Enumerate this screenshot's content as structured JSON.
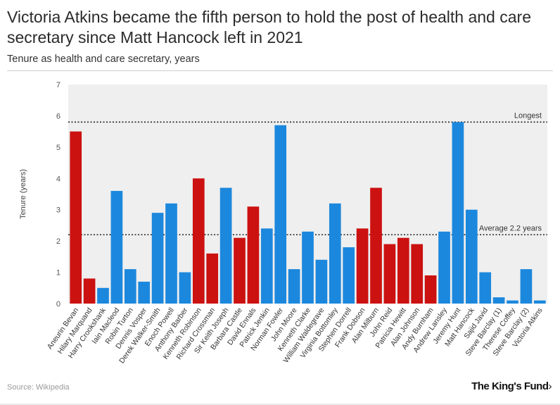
{
  "title": "Victoria Atkins became the fifth person to hold the post of health and care secretary since Matt Hancock left in 2021",
  "subtitle": "Tenure as health and care secretary, years",
  "source": "Source: Wikipedia",
  "logo": "The King's Fund",
  "logo_chevron": "›",
  "colors": {
    "labour": "#cc1111",
    "conservative": "#1c88dd",
    "plot_bg": "#efefef",
    "reference_line": "#222222"
  },
  "chart_data": {
    "type": "bar",
    "ylabel": "Tenure (years)",
    "ylim": [
      0,
      7
    ],
    "yticks": [
      0,
      1,
      2,
      3,
      4,
      5,
      6,
      7
    ],
    "grid": false,
    "categories": [
      "Aneurin Bevan",
      "Hilary Marquand",
      "Harry Crookshank",
      "Iain Macleod",
      "Robin Turton",
      "Dennis Vosper",
      "Derek Walker-Smith",
      "Enoch Powell",
      "Anthony Barber",
      "Kenneth Robinson",
      "Richard Crossman",
      "Sir Keith Joseph",
      "Barbara Castle",
      "David Ennals",
      "Patrick Jenkin",
      "Norman Fowler",
      "John Moore",
      "Kenneth Clarke",
      "William Waldegrave",
      "Virginia Bottomley",
      "Stephen Dorrell",
      "Frank Dobson",
      "Alan Milburn",
      "John Reid",
      "Patricia Hewitt",
      "Alan Johnson",
      "Andy Burnham",
      "Andrew Lansley",
      "Jeremy Hunt",
      "Matt Hancock",
      "Sajid Javid",
      "Steve Barclay (1)",
      "Therese Coffey",
      "Steve Barclay (2)",
      "Victoria Atkins"
    ],
    "values": [
      5.5,
      0.8,
      0.5,
      3.6,
      1.1,
      0.7,
      2.9,
      3.2,
      1.0,
      4.0,
      1.6,
      3.7,
      2.1,
      3.1,
      2.4,
      5.7,
      1.1,
      2.3,
      1.4,
      3.2,
      1.8,
      2.4,
      3.7,
      1.9,
      2.1,
      1.9,
      0.9,
      2.3,
      5.8,
      3.0,
      1.0,
      0.2,
      0.1,
      1.1,
      0.1
    ],
    "party": [
      "labour",
      "labour",
      "conservative",
      "conservative",
      "conservative",
      "conservative",
      "conservative",
      "conservative",
      "conservative",
      "labour",
      "labour",
      "conservative",
      "labour",
      "labour",
      "conservative",
      "conservative",
      "conservative",
      "conservative",
      "conservative",
      "conservative",
      "conservative",
      "labour",
      "labour",
      "labour",
      "labour",
      "labour",
      "labour",
      "conservative",
      "conservative",
      "conservative",
      "conservative",
      "conservative",
      "conservative",
      "conservative",
      "conservative"
    ],
    "reference_lines": [
      {
        "label": "Longest",
        "value": 5.8
      },
      {
        "label": "Average 2.2 years",
        "value": 2.2
      }
    ]
  }
}
